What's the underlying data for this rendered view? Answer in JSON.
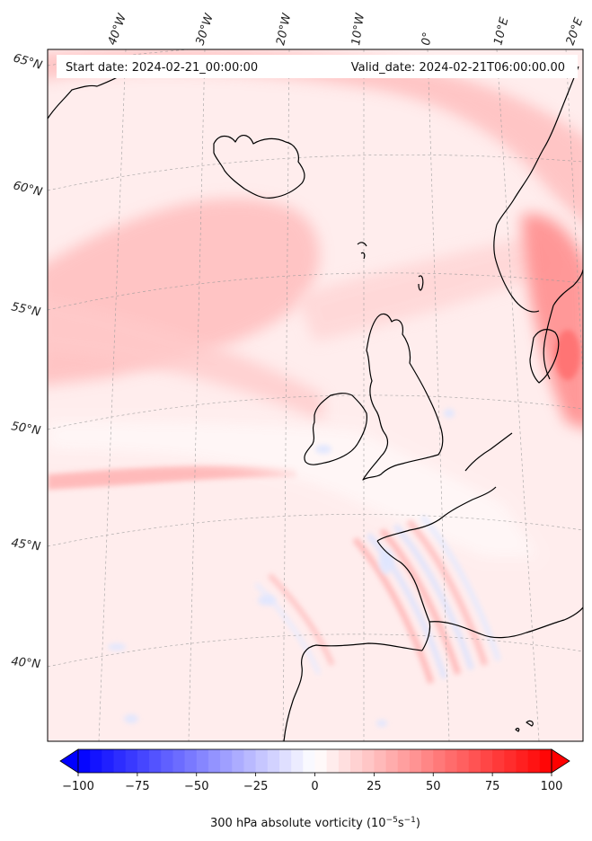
{
  "header": {
    "start_date": "Start date: 2024-02-21_00:00:00",
    "valid_date": "Valid_date: 2024-02-21T06:00:00.00"
  },
  "map": {
    "longitude_labels": [
      "40°W",
      "30°W",
      "20°W",
      "10°W",
      "0°",
      "10°E",
      "20°E"
    ],
    "latitude_labels": [
      "65°N",
      "60°N",
      "55°N",
      "50°N",
      "45°N",
      "40°N"
    ],
    "field_colors": {
      "background": "#ffeded",
      "strong_positive": "#ff8f8f",
      "moderate_positive": "#ffc3c3",
      "weak_negative": "#e6ecff",
      "coastline": "#000000"
    }
  },
  "colorbar": {
    "tick_labels": [
      "−100",
      "−75",
      "−50",
      "−25",
      "0",
      "25",
      "50",
      "75",
      "100"
    ],
    "title_main": "300 hPa absolute vorticity (10",
    "title_exp1": "−5",
    "title_mid": "s",
    "title_exp2": "−1",
    "title_end": ")",
    "colors": [
      "#0000ff",
      "#ffffff",
      "#ff0000"
    ]
  },
  "chart_data": {
    "type": "heatmap",
    "variable": "300 hPa absolute vorticity",
    "unit": "10^-5 s^-1",
    "range": [
      -100,
      100
    ],
    "colorbar_ticks": [
      -100,
      -75,
      -50,
      -25,
      0,
      25,
      50,
      75,
      100
    ],
    "extend": "both"
  }
}
